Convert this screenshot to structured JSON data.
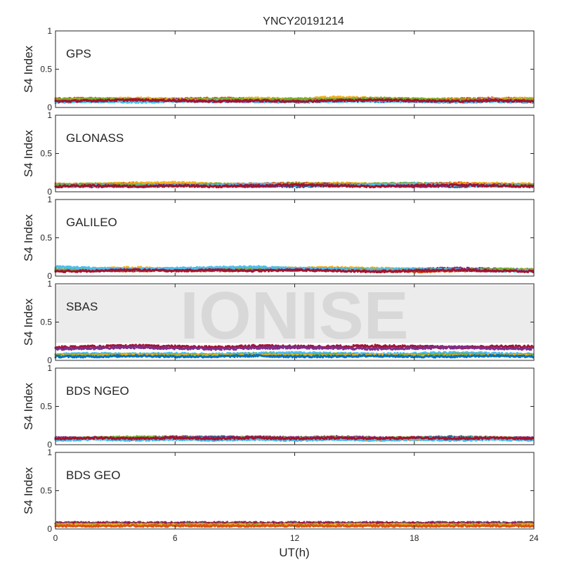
{
  "figure": {
    "title": "YNCY20191214",
    "xlabel": "UT(h)",
    "watermark": "IONISE"
  },
  "chart_data": [
    {
      "type": "scatter",
      "panel_label": "GPS",
      "ylabel": "S4 Index",
      "xlim": [
        0,
        24
      ],
      "ylim": [
        0,
        1
      ],
      "xticks": [
        "0",
        "6",
        "12",
        "18",
        "24"
      ],
      "yticks": [
        "0",
        "0.5",
        "1"
      ],
      "series": [
        {
          "color": "#0072BD",
          "values": [
            0.09,
            0.08,
            0.1,
            0.09,
            0.08,
            0.09,
            0.1,
            0.09,
            0.08,
            0.09,
            0.1,
            0.09,
            0.09
          ]
        },
        {
          "color": "#D95319",
          "values": [
            0.11,
            0.12,
            0.1,
            0.11,
            0.12,
            0.11,
            0.1,
            0.12,
            0.11,
            0.1,
            0.11,
            0.12,
            0.11
          ]
        },
        {
          "color": "#EDB120",
          "values": [
            0.1,
            0.11,
            0.12,
            0.11,
            0.1,
            0.12,
            0.11,
            0.13,
            0.12,
            0.11,
            0.1,
            0.11,
            0.12
          ]
        },
        {
          "color": "#7E2F8E",
          "values": [
            0.08,
            0.09,
            0.08,
            0.1,
            0.09,
            0.08,
            0.09,
            0.1,
            0.09,
            0.08,
            0.09,
            0.1,
            0.09
          ]
        },
        {
          "color": "#77AC30",
          "values": [
            0.1,
            0.11,
            0.1,
            0.09,
            0.11,
            0.1,
            0.11,
            0.1,
            0.12,
            0.11,
            0.1,
            0.09,
            0.1
          ]
        },
        {
          "color": "#4DBEEE",
          "values": [
            0.07,
            0.08,
            0.07,
            0.08,
            0.09,
            0.08,
            0.07,
            0.08,
            0.09,
            0.08,
            0.07,
            0.08,
            0.07
          ]
        },
        {
          "color": "#A2142F",
          "values": [
            0.08,
            0.09,
            0.1,
            0.09,
            0.08,
            0.09,
            0.08,
            0.09,
            0.1,
            0.09,
            0.08,
            0.09,
            0.08
          ]
        }
      ]
    },
    {
      "type": "scatter",
      "panel_label": "GLONASS",
      "ylabel": "S4 Index",
      "xlim": [
        0,
        24
      ],
      "ylim": [
        0,
        1
      ],
      "xticks": [
        "0",
        "6",
        "12",
        "18",
        "24"
      ],
      "yticks": [
        "0",
        "0.5",
        "1"
      ],
      "series": [
        {
          "color": "#0072BD",
          "values": [
            0.08,
            0.09,
            0.07,
            0.08,
            0.09,
            0.08,
            0.07,
            0.08,
            0.09,
            0.08,
            0.07,
            0.08,
            0.09
          ]
        },
        {
          "color": "#D95319",
          "values": [
            0.1,
            0.09,
            0.11,
            0.1,
            0.09,
            0.1,
            0.11,
            0.1,
            0.09,
            0.1,
            0.11,
            0.1,
            0.09
          ]
        },
        {
          "color": "#EDB120",
          "values": [
            0.09,
            0.1,
            0.11,
            0.12,
            0.1,
            0.09,
            0.1,
            0.11,
            0.1,
            0.09,
            0.1,
            0.11,
            0.1
          ]
        },
        {
          "color": "#7E2F8E",
          "values": [
            0.08,
            0.07,
            0.08,
            0.09,
            0.08,
            0.07,
            0.09,
            0.1,
            0.08,
            0.07,
            0.08,
            0.09,
            0.08
          ]
        },
        {
          "color": "#77AC30",
          "values": [
            0.09,
            0.1,
            0.09,
            0.08,
            0.1,
            0.09,
            0.1,
            0.09,
            0.1,
            0.11,
            0.09,
            0.08,
            0.09
          ]
        },
        {
          "color": "#4DBEEE",
          "values": [
            0.07,
            0.08,
            0.07,
            0.09,
            0.08,
            0.1,
            0.09,
            0.08,
            0.09,
            0.1,
            0.09,
            0.08,
            0.07
          ]
        },
        {
          "color": "#A2142F",
          "values": [
            0.07,
            0.08,
            0.07,
            0.08,
            0.07,
            0.08,
            0.09,
            0.08,
            0.07,
            0.08,
            0.09,
            0.08,
            0.07
          ]
        }
      ]
    },
    {
      "type": "scatter",
      "panel_label": "GALILEO",
      "ylabel": "S4 Index",
      "xlim": [
        0,
        24
      ],
      "ylim": [
        0,
        1
      ],
      "xticks": [
        "0",
        "6",
        "12",
        "18",
        "24"
      ],
      "yticks": [
        "0",
        "0.5",
        "1"
      ],
      "series": [
        {
          "color": "#0072BD",
          "values": [
            0.08,
            0.07,
            0.08,
            0.09,
            0.1,
            0.09,
            0.08,
            0.09,
            0.08,
            0.07,
            0.08,
            0.07,
            0.08
          ]
        },
        {
          "color": "#D95319",
          "values": [
            0.07,
            0.08,
            0.07,
            0.08,
            0.07,
            0.08,
            0.09,
            0.08,
            0.07,
            0.06,
            0.07,
            0.08,
            0.07
          ]
        },
        {
          "color": "#EDB120",
          "values": [
            0.09,
            0.1,
            0.11,
            0.09,
            0.1,
            0.11,
            0.1,
            0.11,
            0.1,
            0.09,
            0.08,
            0.09,
            0.08
          ]
        },
        {
          "color": "#7E2F8E",
          "values": [
            0.07,
            0.08,
            0.08,
            0.09,
            0.08,
            0.09,
            0.08,
            0.09,
            0.08,
            0.09,
            0.1,
            0.09,
            0.08
          ]
        },
        {
          "color": "#77AC30",
          "values": [
            0.08,
            0.09,
            0.08,
            0.09,
            0.1,
            0.09,
            0.1,
            0.09,
            0.08,
            0.09,
            0.08,
            0.09,
            0.08
          ]
        },
        {
          "color": "#4DBEEE",
          "values": [
            0.12,
            0.1,
            0.09,
            0.1,
            0.11,
            0.12,
            0.1,
            0.09,
            0.08,
            0.09,
            0.08,
            0.07,
            0.07
          ]
        },
        {
          "color": "#A2142F",
          "values": [
            0.06,
            0.07,
            0.08,
            0.07,
            0.08,
            0.07,
            0.08,
            0.07,
            0.06,
            0.07,
            0.08,
            0.07,
            0.06
          ]
        }
      ]
    },
    {
      "type": "scatter",
      "panel_label": "SBAS",
      "ylabel": "S4 Index",
      "xlim": [
        0,
        24
      ],
      "ylim": [
        0,
        1
      ],
      "xticks": [
        "0",
        "6",
        "12",
        "18",
        "24"
      ],
      "yticks": [
        "0",
        "0.5",
        "1"
      ],
      "series": [
        {
          "color": "#A2142F",
          "values": [
            0.17,
            0.18,
            0.19,
            0.18,
            0.17,
            0.19,
            0.18,
            0.18,
            0.19,
            0.18,
            0.17,
            0.18,
            0.18
          ]
        },
        {
          "color": "#7E2F8E",
          "values": [
            0.15,
            0.16,
            0.17,
            0.16,
            0.15,
            0.16,
            0.17,
            0.16,
            0.15,
            0.16,
            0.17,
            0.16,
            0.15
          ]
        },
        {
          "color": "#4DBEEE",
          "values": [
            0.08,
            0.09,
            0.08,
            0.09,
            0.08,
            0.09,
            0.1,
            0.09,
            0.08,
            0.09,
            0.1,
            0.09,
            0.08
          ]
        },
        {
          "color": "#77AC30",
          "values": [
            0.07,
            0.07,
            0.08,
            0.07,
            0.07,
            0.08,
            0.07,
            0.08,
            0.07,
            0.07,
            0.08,
            0.07,
            0.07
          ]
        },
        {
          "color": "#EDB120",
          "values": [
            0.06,
            0.06,
            0.07,
            0.06,
            0.06,
            0.07,
            0.06,
            0.06,
            0.07,
            0.06,
            0.06,
            0.07,
            0.06
          ]
        },
        {
          "color": "#0072BD",
          "values": [
            0.05,
            0.05,
            0.06,
            0.05,
            0.05,
            0.06,
            0.05,
            0.05,
            0.06,
            0.05,
            0.05,
            0.06,
            0.05
          ]
        }
      ]
    },
    {
      "type": "scatter",
      "panel_label": "BDS NGEO",
      "ylabel": "S4 Index",
      "xlim": [
        0,
        24
      ],
      "ylim": [
        0,
        1
      ],
      "xticks": [
        "0",
        "6",
        "12",
        "18",
        "24"
      ],
      "yticks": [
        "0",
        "0.5",
        "1"
      ],
      "series": [
        {
          "color": "#0072BD",
          "values": [
            0.08,
            0.09,
            0.08,
            0.09,
            0.1,
            0.09,
            0.08,
            0.09,
            0.08,
            0.09,
            0.1,
            0.09,
            0.08
          ]
        },
        {
          "color": "#D95319",
          "values": [
            0.07,
            0.08,
            0.07,
            0.08,
            0.07,
            0.08,
            0.07,
            0.08,
            0.07,
            0.08,
            0.07,
            0.08,
            0.07
          ]
        },
        {
          "color": "#EDB120",
          "values": [
            0.07,
            0.08,
            0.09,
            0.08,
            0.07,
            0.08,
            0.07,
            0.08,
            0.06,
            0.07,
            0.08,
            0.09,
            0.08
          ]
        },
        {
          "color": "#7E2F8E",
          "values": [
            0.09,
            0.08,
            0.09,
            0.1,
            0.09,
            0.1,
            0.09,
            0.1,
            0.09,
            0.08,
            0.09,
            0.08,
            0.09
          ]
        },
        {
          "color": "#77AC30",
          "values": [
            0.08,
            0.09,
            0.1,
            0.09,
            0.08,
            0.09,
            0.08,
            0.09,
            0.08,
            0.09,
            0.08,
            0.09,
            0.08
          ]
        },
        {
          "color": "#4DBEEE",
          "values": [
            0.06,
            0.07,
            0.06,
            0.07,
            0.06,
            0.07,
            0.06,
            0.07,
            0.06,
            0.07,
            0.06,
            0.07,
            0.06
          ]
        },
        {
          "color": "#A2142F",
          "values": [
            0.08,
            0.09,
            0.08,
            0.09,
            0.08,
            0.09,
            0.08,
            0.09,
            0.08,
            0.09,
            0.08,
            0.09,
            0.08
          ]
        }
      ]
    },
    {
      "type": "scatter",
      "panel_label": "BDS GEO",
      "ylabel": "S4 Index",
      "xlim": [
        0,
        24
      ],
      "ylim": [
        0,
        1
      ],
      "xticks": [
        "0",
        "6",
        "12",
        "18",
        "24"
      ],
      "yticks": [
        "0",
        "0.5",
        "1"
      ],
      "series": [
        {
          "color": "#7E2F8E",
          "values": [
            0.08,
            0.08,
            0.08,
            0.08,
            0.08,
            0.08,
            0.08,
            0.08,
            0.08,
            0.08,
            0.08,
            0.08,
            0.08
          ]
        },
        {
          "color": "#A2142F",
          "values": [
            0.07,
            0.07,
            0.07,
            0.07,
            0.07,
            0.07,
            0.07,
            0.07,
            0.07,
            0.07,
            0.07,
            0.07,
            0.07
          ]
        },
        {
          "color": "#77AC30",
          "values": [
            0.06,
            0.06,
            0.06,
            0.06,
            0.06,
            0.06,
            0.06,
            0.06,
            0.06,
            0.06,
            0.06,
            0.06,
            0.06
          ]
        },
        {
          "color": "#EDB120",
          "values": [
            0.05,
            0.05,
            0.05,
            0.05,
            0.05,
            0.05,
            0.05,
            0.05,
            0.05,
            0.05,
            0.05,
            0.05,
            0.05
          ]
        },
        {
          "color": "#D95319",
          "values": [
            0.04,
            0.04,
            0.04,
            0.04,
            0.04,
            0.04,
            0.04,
            0.04,
            0.04,
            0.04,
            0.04,
            0.04,
            0.04
          ]
        }
      ]
    }
  ]
}
